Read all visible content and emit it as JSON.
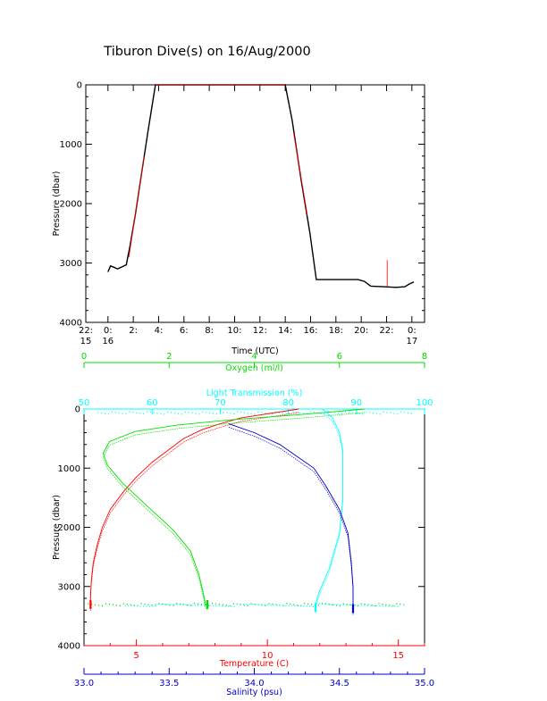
{
  "page": {
    "title": "Tiburon Dive(s) on 16/Aug/2000"
  },
  "colors": {
    "axis": "#000000",
    "oxygen": "#00e000",
    "transmission": "#00ffff",
    "temperature": "#ff0000",
    "salinity": "#0000cc",
    "trace": "#000000",
    "trace_highlight": "#ff0000"
  },
  "chart_data": [
    {
      "type": "line",
      "xlabel": "Time (UTC)",
      "ylabel": "Pressure (dbar)",
      "x_unit": "hours since 22:15 on 15/Aug",
      "xlim": [
        0,
        26.75
      ],
      "ylim": [
        4000,
        0
      ],
      "xticks": [
        {
          "x": 0,
          "top": "22:",
          "bottom": "15"
        },
        {
          "x": 1.75,
          "top": "0:",
          "bottom": "16"
        },
        {
          "x": 3.75,
          "top": "2:",
          "bottom": ""
        },
        {
          "x": 5.75,
          "top": "4:",
          "bottom": ""
        },
        {
          "x": 7.75,
          "top": "6:",
          "bottom": ""
        },
        {
          "x": 9.75,
          "top": "8:",
          "bottom": ""
        },
        {
          "x": 11.75,
          "top": "10:",
          "bottom": ""
        },
        {
          "x": 13.75,
          "top": "12:",
          "bottom": ""
        },
        {
          "x": 15.75,
          "top": "14:",
          "bottom": ""
        },
        {
          "x": 17.75,
          "top": "16:",
          "bottom": ""
        },
        {
          "x": 19.75,
          "top": "18:",
          "bottom": ""
        },
        {
          "x": 21.75,
          "top": "20:",
          "bottom": ""
        },
        {
          "x": 23.75,
          "top": "22:",
          "bottom": ""
        },
        {
          "x": 25.75,
          "top": "0:",
          "bottom": "17"
        }
      ],
      "yticks": [
        0,
        1000,
        2000,
        3000,
        4000
      ],
      "series": [
        {
          "points": [
            [
              1.75,
              3150
            ],
            [
              1.95,
              3050
            ],
            [
              2.2,
              3070
            ],
            [
              2.5,
              3100
            ],
            [
              2.8,
              3070
            ],
            [
              3.2,
              3030
            ],
            [
              3.5,
              2700
            ],
            [
              3.9,
              2200
            ],
            [
              4.4,
              1500
            ],
            [
              4.9,
              800
            ],
            [
              5.5,
              0
            ],
            [
              6,
              0
            ],
            [
              15.75,
              0
            ],
            [
              16.3,
              600
            ],
            [
              17,
              1600
            ],
            [
              17.7,
              2500
            ],
            [
              18.2,
              3280
            ],
            [
              21.5,
              3280
            ],
            [
              22,
              3310
            ],
            [
              22.5,
              3390
            ],
            [
              23.5,
              3400
            ],
            [
              24.5,
              3410
            ],
            [
              25.2,
              3400
            ],
            [
              25.5,
              3360
            ],
            [
              25.9,
              3320
            ]
          ]
        },
        {
          "segments": [
            [
              [
                3.4,
                2900
              ],
              [
                4.6,
                1200
              ]
            ],
            [
              [
                5.5,
                0
              ],
              [
                15.75,
                0
              ]
            ],
            [
              [
                16.4,
                800
              ],
              [
                17.5,
                2200
              ]
            ],
            [
              [
                23.8,
                2950
              ],
              [
                23.8,
                3400
              ]
            ]
          ]
        }
      ]
    },
    {
      "type": "line",
      "ylabel": "Pressure (dbar)",
      "ylim": [
        4000,
        0
      ],
      "yticks": [
        0,
        1000,
        2000,
        3000,
        4000
      ],
      "axes": {
        "oxygen": {
          "label": "Oxygen (ml/l)",
          "range": [
            0,
            8
          ],
          "ticks": [
            0,
            2,
            4,
            6,
            8
          ]
        },
        "transmission": {
          "label": "Light Transmission (%)",
          "range": [
            50,
            100
          ],
          "ticks": [
            50,
            60,
            70,
            80,
            90,
            100
          ]
        },
        "temperature": {
          "label": "Temperature (C)",
          "range": [
            3,
            16
          ],
          "ticks": [
            5,
            10,
            15
          ]
        },
        "salinity": {
          "label": "Salinity (psu)",
          "range": [
            33.0,
            35.0
          ],
          "ticks": [
            "33.0",
            "33.5",
            "34.0",
            "34.5",
            "35.0"
          ]
        }
      },
      "series": [
        {
          "axis": "temperature",
          "points": [
            [
              11.2,
              0
            ],
            [
              9,
              150
            ],
            [
              8.2,
              250
            ],
            [
              7.5,
              350
            ],
            [
              6.8,
              500
            ],
            [
              6.2,
              700
            ],
            [
              5.6,
              900
            ],
            [
              5.0,
              1150
            ],
            [
              4.5,
              1400
            ],
            [
              4.0,
              1700
            ],
            [
              3.7,
              2000
            ],
            [
              3.5,
              2300
            ],
            [
              3.35,
              2600
            ],
            [
              3.28,
              2900
            ],
            [
              3.25,
              3150
            ],
            [
              3.25,
              3350
            ]
          ]
        },
        {
          "axis": "oxygen",
          "points": [
            [
              6.6,
              0
            ],
            [
              5.0,
              100
            ],
            [
              3.5,
              180
            ],
            [
              2.2,
              270
            ],
            [
              1.2,
              380
            ],
            [
              0.6,
              550
            ],
            [
              0.45,
              750
            ],
            [
              0.55,
              950
            ],
            [
              0.9,
              1250
            ],
            [
              1.5,
              1650
            ],
            [
              2.1,
              2050
            ],
            [
              2.5,
              2400
            ],
            [
              2.7,
              2800
            ],
            [
              2.8,
              3100
            ],
            [
              2.85,
              3280
            ],
            [
              2.9,
              3350
            ]
          ]
        },
        {
          "axis": "transmission",
          "points": [
            [
              85,
              0
            ],
            [
              86.5,
              150
            ],
            [
              87.5,
              400
            ],
            [
              88,
              700
            ],
            [
              88,
              1500
            ],
            [
              87.5,
              2100
            ],
            [
              86,
              2700
            ],
            [
              84.5,
              3100
            ],
            [
              84,
              3300
            ],
            [
              84,
              3400
            ]
          ]
        },
        {
          "axis": "salinity",
          "points": [
            [
              33.85,
              250
            ],
            [
              34.0,
              400
            ],
            [
              34.15,
              600
            ],
            [
              34.25,
              800
            ],
            [
              34.35,
              1000
            ],
            [
              34.42,
              1300
            ],
            [
              34.5,
              1700
            ],
            [
              34.55,
              2100
            ],
            [
              34.57,
              2600
            ],
            [
              34.58,
              3000
            ],
            [
              34.58,
              3300
            ],
            [
              34.58,
              3420
            ]
          ]
        }
      ],
      "scatter": [
        {
          "axis": "oxygen",
          "y": 3290,
          "xmin": 0,
          "xmax": 7.5
        },
        {
          "axis": "transmission",
          "y": 50,
          "xmin": 52,
          "xmax": 98
        },
        {
          "axis": "transmission",
          "y": 3300,
          "xmin": 56,
          "xmax": 96
        }
      ]
    }
  ]
}
